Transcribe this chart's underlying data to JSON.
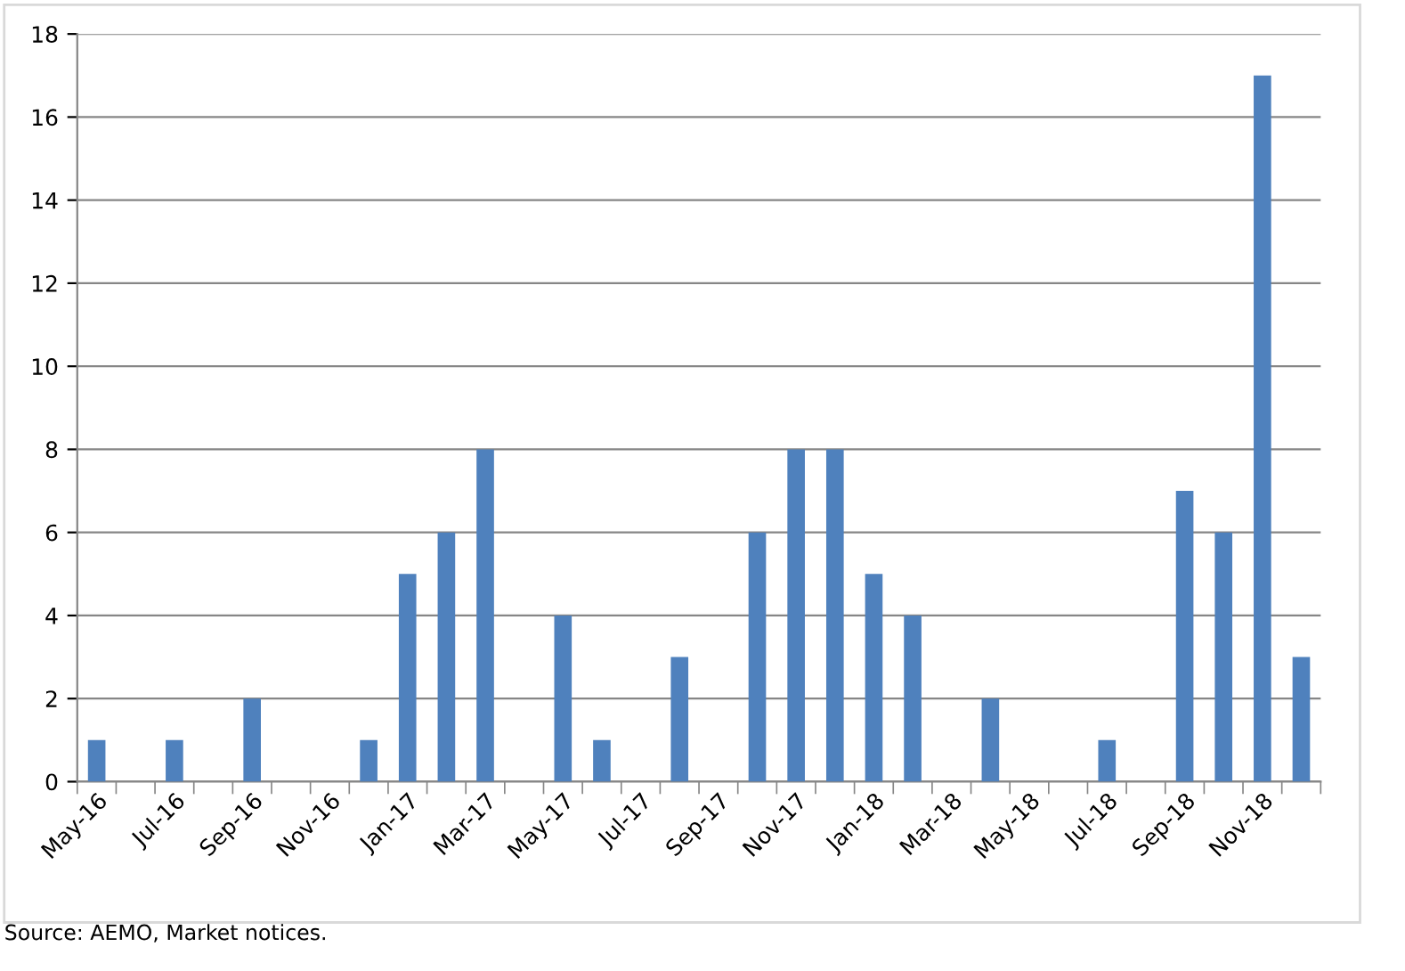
{
  "chart_data": {
    "type": "bar",
    "categories": [
      "May-16",
      null,
      "Jul-16",
      null,
      "Sep-16",
      null,
      "Nov-16",
      null,
      "Jan-17",
      null,
      "Mar-17",
      null,
      "May-17",
      null,
      "Jul-17",
      null,
      "Sep-17",
      null,
      "Nov-17",
      null,
      "Jan-18",
      null,
      "Mar-18",
      null,
      "May-18",
      null,
      "Jul-18",
      null,
      "Sep-18",
      null,
      "Nov-18",
      null
    ],
    "values": [
      1,
      0,
      1,
      0,
      2,
      0,
      0,
      1,
      5,
      6,
      8,
      0,
      4,
      1,
      0,
      3,
      0,
      6,
      8,
      8,
      5,
      4,
      0,
      2,
      0,
      0,
      1,
      0,
      7,
      6,
      17,
      3
    ],
    "color": "#4f81bd",
    "ylim": [
      0,
      18
    ],
    "yticks": [
      0,
      2,
      4,
      6,
      8,
      10,
      12,
      14,
      16,
      18
    ],
    "grid": "y",
    "legend": false,
    "annotations": [
      "Source: AEMO, Market notices."
    ]
  }
}
